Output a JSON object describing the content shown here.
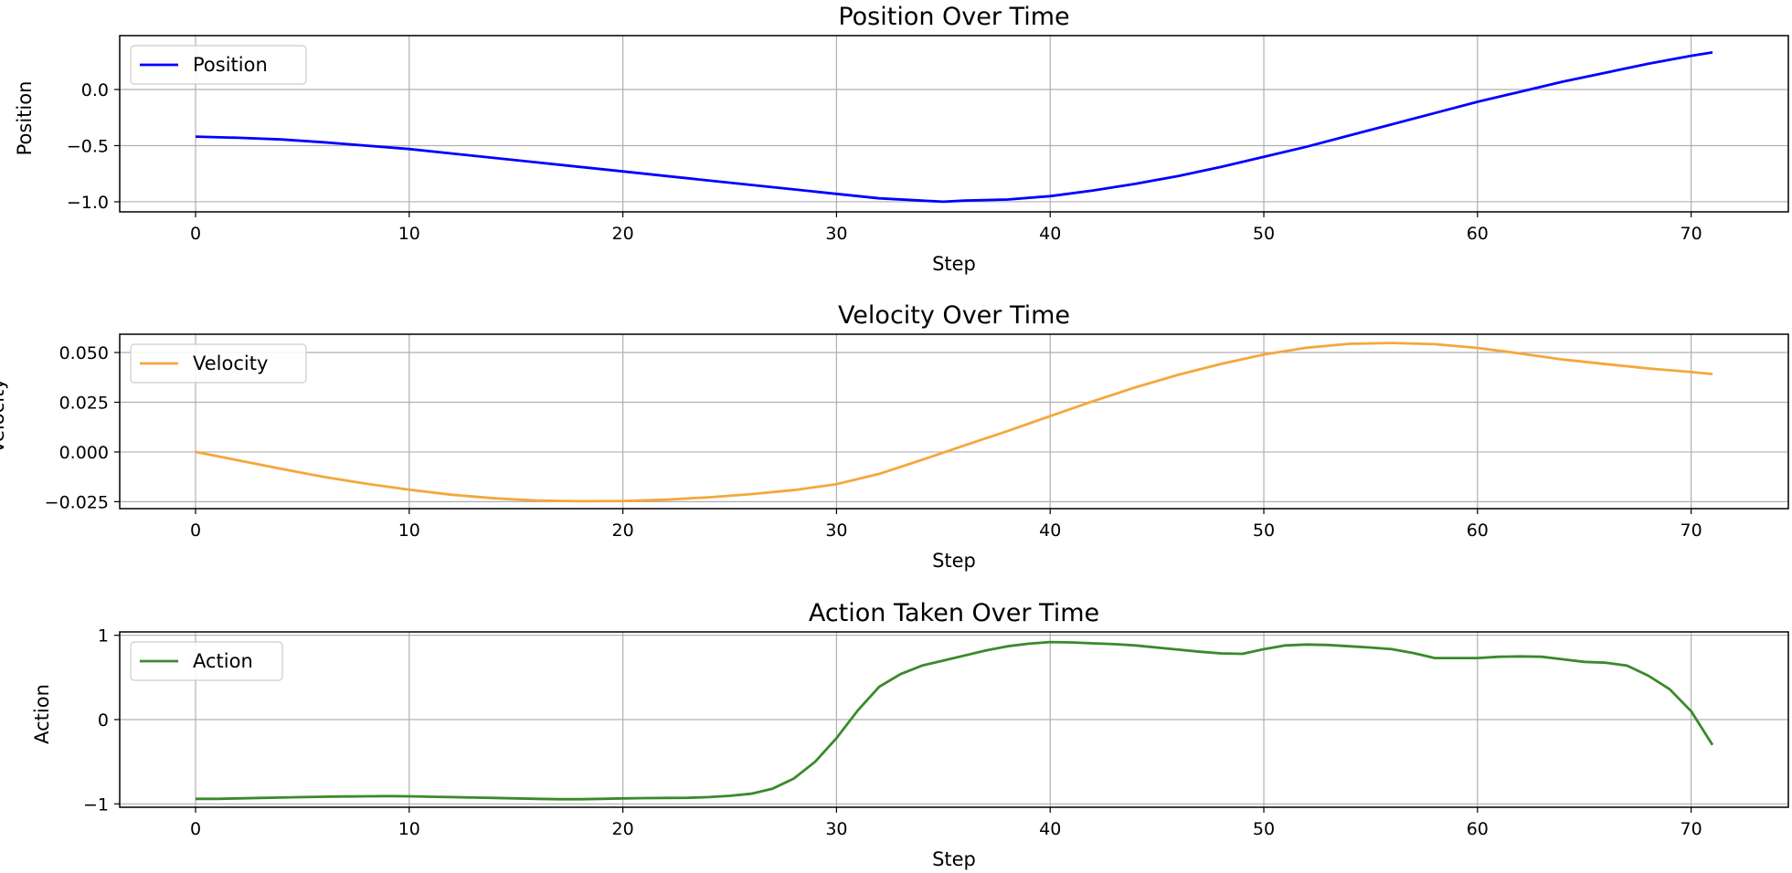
{
  "chart_data": [
    {
      "type": "line",
      "title": "Position Over Time",
      "xlabel": "Step",
      "ylabel": "Position",
      "xlim": [
        -3.55,
        74.55
      ],
      "ylim": [
        -1.09,
        0.48
      ],
      "xticks": [
        0,
        10,
        20,
        30,
        40,
        50,
        60,
        70
      ],
      "xtick_labels": [
        "0",
        "10",
        "20",
        "30",
        "40",
        "50",
        "60",
        "70"
      ],
      "yticks": [
        0.0,
        -0.5,
        -1.0
      ],
      "ytick_labels": [
        "0.0",
        "−0.5",
        "−1.0"
      ],
      "grid": true,
      "legend": "top-left",
      "series": [
        {
          "name": "Position",
          "color": "#0000ff",
          "x": [
            0,
            2,
            4,
            6,
            8,
            10,
            12,
            14,
            16,
            18,
            20,
            22,
            24,
            26,
            28,
            30,
            32,
            34,
            35,
            36,
            38,
            40,
            42,
            44,
            46,
            48,
            50,
            52,
            54,
            56,
            58,
            60,
            62,
            64,
            66,
            68,
            70,
            71
          ],
          "y": [
            -0.42,
            -0.43,
            -0.445,
            -0.47,
            -0.5,
            -0.53,
            -0.57,
            -0.61,
            -0.65,
            -0.69,
            -0.73,
            -0.77,
            -0.81,
            -0.85,
            -0.89,
            -0.93,
            -0.97,
            -0.99,
            -1.0,
            -0.99,
            -0.98,
            -0.95,
            -0.9,
            -0.84,
            -0.77,
            -0.69,
            -0.6,
            -0.51,
            -0.41,
            -0.31,
            -0.21,
            -0.11,
            -0.02,
            0.07,
            0.15,
            0.23,
            0.3,
            0.33
          ]
        }
      ]
    },
    {
      "type": "line",
      "title": "Velocity Over Time",
      "xlabel": "Step",
      "ylabel": "Velocity",
      "xlim": [
        -3.55,
        74.55
      ],
      "ylim": [
        -0.0285,
        0.0592
      ],
      "xticks": [
        0,
        10,
        20,
        30,
        40,
        50,
        60,
        70
      ],
      "xtick_labels": [
        "0",
        "10",
        "20",
        "30",
        "40",
        "50",
        "60",
        "70"
      ],
      "yticks": [
        0.05,
        0.025,
        0.0,
        -0.025
      ],
      "ytick_labels": [
        "0.050",
        "0.025",
        "0.000",
        "−0.025"
      ],
      "grid": true,
      "legend": "top-left",
      "series": [
        {
          "name": "Velocity",
          "color": "#f5a73b",
          "x": [
            0,
            2,
            4,
            6,
            8,
            10,
            12,
            14,
            16,
            18,
            20,
            22,
            24,
            26,
            28,
            30,
            32,
            34,
            36,
            38,
            40,
            42,
            44,
            46,
            48,
            50,
            52,
            54,
            56,
            58,
            60,
            62,
            64,
            66,
            68,
            70,
            71
          ],
          "y": [
            0.0,
            -0.0042,
            -0.0085,
            -0.0125,
            -0.016,
            -0.019,
            -0.0215,
            -0.0233,
            -0.0244,
            -0.0248,
            -0.0247,
            -0.024,
            -0.0228,
            -0.0212,
            -0.0192,
            -0.0162,
            -0.011,
            -0.004,
            0.0033,
            0.0105,
            0.018,
            0.0255,
            0.0325,
            0.0388,
            0.0443,
            0.049,
            0.0524,
            0.0544,
            0.0548,
            0.0542,
            0.0523,
            0.0495,
            0.0465,
            0.0442,
            0.042,
            0.0402,
            0.0392
          ]
        }
      ]
    },
    {
      "type": "line",
      "title": "Action Taken Over Time",
      "xlabel": "Step",
      "ylabel": "Action",
      "xlim": [
        -3.55,
        74.55
      ],
      "ylim": [
        -1.04,
        1.04
      ],
      "xticks": [
        0,
        10,
        20,
        30,
        40,
        50,
        60,
        70
      ],
      "xtick_labels": [
        "0",
        "10",
        "20",
        "30",
        "40",
        "50",
        "60",
        "70"
      ],
      "yticks": [
        1,
        0,
        -1
      ],
      "ytick_labels": [
        "1",
        "0",
        "−1"
      ],
      "grid": true,
      "legend": "top-left",
      "series": [
        {
          "name": "Action",
          "color": "#3a8a2a",
          "x": [
            0,
            1,
            2,
            3,
            4,
            5,
            6,
            7,
            8,
            9,
            10,
            11,
            12,
            13,
            14,
            15,
            16,
            17,
            18,
            19,
            20,
            21,
            22,
            23,
            24,
            25,
            26,
            27,
            28,
            29,
            30,
            31,
            32,
            33,
            34,
            35,
            36,
            37,
            38,
            39,
            40,
            41,
            42,
            43,
            44,
            45,
            46,
            47,
            48,
            49,
            50,
            51,
            52,
            53,
            54,
            55,
            56,
            57,
            58,
            59,
            60,
            61,
            62,
            63,
            64,
            65,
            66,
            67,
            68,
            69,
            70,
            71
          ],
          "y": [
            -0.94,
            -0.94,
            -0.935,
            -0.93,
            -0.925,
            -0.92,
            -0.915,
            -0.912,
            -0.91,
            -0.908,
            -0.91,
            -0.915,
            -0.92,
            -0.925,
            -0.93,
            -0.935,
            -0.94,
            -0.945,
            -0.945,
            -0.94,
            -0.935,
            -0.932,
            -0.93,
            -0.928,
            -0.92,
            -0.905,
            -0.88,
            -0.82,
            -0.7,
            -0.5,
            -0.22,
            0.11,
            0.39,
            0.54,
            0.64,
            0.7,
            0.76,
            0.82,
            0.87,
            0.9,
            0.92,
            0.915,
            0.905,
            0.895,
            0.88,
            0.855,
            0.83,
            0.805,
            0.785,
            0.78,
            0.835,
            0.88,
            0.89,
            0.885,
            0.87,
            0.855,
            0.835,
            0.79,
            0.73,
            0.73,
            0.73,
            0.745,
            0.75,
            0.745,
            0.715,
            0.685,
            0.675,
            0.64,
            0.52,
            0.36,
            0.1,
            -0.3
          ]
        }
      ]
    }
  ]
}
